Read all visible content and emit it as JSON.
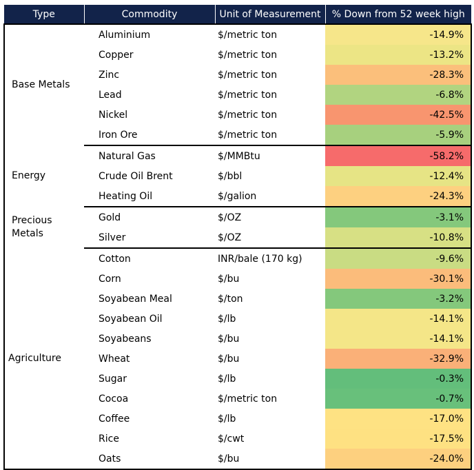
{
  "headers": [
    "Type",
    "Commodity",
    "Unit of Measurement",
    "% Down from 52 week high"
  ],
  "groups": [
    {
      "type": "Base Metals",
      "rows": [
        {
          "commodity": "Aluminium",
          "unit": "$/metric ton",
          "pct": "-14.9%",
          "value": -14.9,
          "color": "#f6e68a"
        },
        {
          "commodity": "Copper",
          "unit": "$/metric ton",
          "pct": "-13.2%",
          "value": -13.2,
          "color": "#ece585"
        },
        {
          "commodity": "Zinc",
          "unit": "$/metric ton",
          "pct": "-28.3%",
          "value": -28.3,
          "color": "#fbbf7b"
        },
        {
          "commodity": "Lead",
          "unit": "$/metric ton",
          "pct": "-6.8%",
          "value": -6.8,
          "color": "#b1d480"
        },
        {
          "commodity": "Nickel",
          "unit": "$/metric ton",
          "pct": "-42.5%",
          "value": -42.5,
          "color": "#f8956f"
        },
        {
          "commodity": "Iron Ore",
          "unit": "$/metric ton",
          "pct": "-5.9%",
          "value": -5.9,
          "color": "#a7d07e"
        }
      ]
    },
    {
      "type": "Energy",
      "rows": [
        {
          "commodity": "Natural Gas",
          "unit": "$/MMBtu",
          "pct": "-58.2%",
          "value": -58.2,
          "color": "#f66b6b"
        },
        {
          "commodity": "Crude Oil Brent",
          "unit": "$/bbl",
          "pct": "-12.4%",
          "value": -12.4,
          "color": "#e6e485"
        },
        {
          "commodity": "Heating Oil",
          "unit": "$/galion",
          "pct": "-24.3%",
          "value": -24.3,
          "color": "#fdd080"
        }
      ]
    },
    {
      "type": "Precious Metals",
      "rows": [
        {
          "commodity": "Gold",
          "unit": "$/OZ",
          "pct": "-3.1%",
          "value": -3.1,
          "color": "#84c87c"
        },
        {
          "commodity": "Silver",
          "unit": "$/OZ",
          "pct": "-10.8%",
          "value": -10.8,
          "color": "#d7e084"
        }
      ]
    },
    {
      "type": "Agriculture",
      "rows": [
        {
          "commodity": "Cotton",
          "unit": "INR/bale (170 kg)",
          "pct": "-9.6%",
          "value": -9.6,
          "color": "#c9dc83"
        },
        {
          "commodity": "Corn",
          "unit": "$/bu",
          "pct": "-30.1%",
          "value": -30.1,
          "color": "#fbbc7b"
        },
        {
          "commodity": "Soyabean Meal",
          "unit": "$/ton",
          "pct": "-3.2%",
          "value": -3.2,
          "color": "#84c87c"
        },
        {
          "commodity": "Soyabean Oil",
          "unit": "$/lb",
          "pct": "-14.1%",
          "value": -14.1,
          "color": "#f4e688"
        },
        {
          "commodity": "Soyabeans",
          "unit": "$/bu",
          "pct": "-14.1%",
          "value": -14.1,
          "color": "#f4e688"
        },
        {
          "commodity": "Wheat",
          "unit": "$/bu",
          "pct": "-32.9%",
          "value": -32.9,
          "color": "#fab078"
        },
        {
          "commodity": "Sugar",
          "unit": "$/lb",
          "pct": "-0.3%",
          "value": -0.3,
          "color": "#63be7b"
        },
        {
          "commodity": "Cocoa",
          "unit": "$/metric ton",
          "pct": "-0.7%",
          "value": -0.7,
          "color": "#68c07b"
        },
        {
          "commodity": "Coffee",
          "unit": "$/lb",
          "pct": "-17.0%",
          "value": -17.0,
          "color": "#fee283"
        },
        {
          "commodity": "Rice",
          "unit": "$/cwt",
          "pct": "-17.5%",
          "value": -17.5,
          "color": "#fee182"
        },
        {
          "commodity": "Oats",
          "unit": "$/bu",
          "pct": "-24.0%",
          "value": -24.0,
          "color": "#fdd07f"
        }
      ]
    }
  ]
}
